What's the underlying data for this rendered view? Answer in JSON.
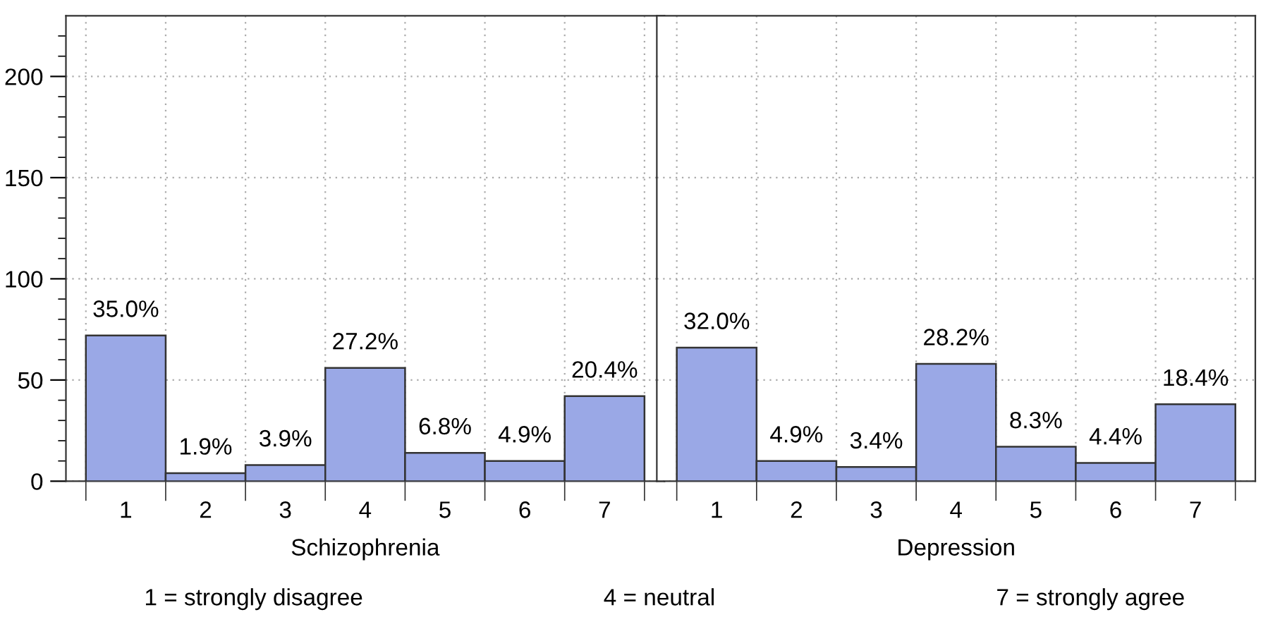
{
  "chart_data": [
    {
      "type": "bar",
      "xlabel": "Schizophrenia",
      "categories": [
        "1",
        "2",
        "3",
        "4",
        "5",
        "6",
        "7"
      ],
      "values": [
        72,
        4,
        8,
        56,
        14,
        10,
        42
      ],
      "color": "#9aa8e6",
      "ylim": [
        0,
        230
      ],
      "yticks": [
        0,
        {
          "value": 10,
          "label": null
        },
        {
          "value": 20,
          "label": null
        },
        {
          "value": 30,
          "label": null
        },
        {
          "value": 40,
          "label": null
        },
        50,
        {
          "value": 60,
          "label": null
        },
        {
          "value": 70,
          "label": null
        },
        {
          "value": 80,
          "label": null
        },
        {
          "value": 90,
          "label": null
        },
        100,
        {
          "value": 110,
          "label": null
        },
        {
          "value": 120,
          "label": null
        },
        {
          "value": 130,
          "label": null
        },
        {
          "value": 140,
          "label": null
        },
        150,
        {
          "value": 160,
          "label": null
        },
        {
          "value": 170,
          "label": null
        },
        {
          "value": 180,
          "label": null
        },
        {
          "value": 190,
          "label": null
        },
        200,
        {
          "value": 210,
          "label": null
        },
        {
          "value": 220,
          "label": null
        }
      ],
      "grid": true,
      "annotations": [
        {
          "text": "35.0%",
          "x": "1",
          "y": 72
        },
        {
          "text": "1.9%",
          "x": "2",
          "y": 4
        },
        {
          "text": "3.9%",
          "x": "3",
          "y": 8
        },
        {
          "text": "27.2%",
          "x": "4",
          "y": 56
        },
        {
          "text": "6.8%",
          "x": "5",
          "y": 14
        },
        {
          "text": "4.9%",
          "x": "6",
          "y": 10
        },
        {
          "text": "20.4%",
          "x": "7",
          "y": 42
        },
        "1 = strongly disagree",
        "4 = neutral",
        "7 = strongly agree"
      ]
    },
    {
      "type": "bar",
      "xlabel": "Depression",
      "categories": [
        "1",
        "2",
        "3",
        "4",
        "5",
        "6",
        "7"
      ],
      "values": [
        66,
        10,
        7,
        58,
        17,
        9,
        38
      ],
      "color": "#9aa8e6",
      "ylim": [
        0,
        230
      ],
      "yticks": [
        0,
        50,
        100,
        150,
        200
      ],
      "grid": true,
      "tick_labels": "x",
      "annotations": [
        {
          "text": "32.0%",
          "x": "1",
          "y": 66
        },
        {
          "text": "4.9%",
          "x": "2",
          "y": 10
        },
        {
          "text": "3.4%",
          "x": "3",
          "y": 7
        },
        {
          "text": "28.2%",
          "x": "4",
          "y": 58
        },
        {
          "text": "8.3%",
          "x": "5",
          "y": 17
        },
        {
          "text": "4.4%",
          "x": "6",
          "y": 9
        },
        {
          "text": "18.4%",
          "x": "7",
          "y": 38
        }
      ]
    }
  ]
}
